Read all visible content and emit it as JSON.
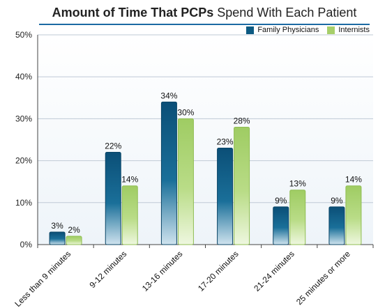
{
  "title": {
    "bold_part": "Amount of Time That PCPs",
    "rest_part": " Spend With Each Patient"
  },
  "colors": {
    "family_physicians": "#0d5a82",
    "internists": "#a7cf6a",
    "grid": "#bfcad6",
    "plot_bg_top": "#ffffff",
    "plot_bg_bottom": "#eef4f9"
  },
  "chart_data": {
    "type": "bar",
    "title": "Amount of Time That PCPs Spend With Each Patient",
    "categories": [
      "Less than 9 minutes",
      "9-12 minutes",
      "13-16 minutes",
      "17-20 minutes",
      "21-24 minutes",
      "25 minutes or more"
    ],
    "series": [
      {
        "name": "Family Physicians",
        "values": [
          3,
          22,
          34,
          23,
          9,
          9
        ],
        "labels": [
          "3%",
          "22%",
          "34%",
          "23%",
          "9%",
          "9%"
        ]
      },
      {
        "name": "Internists",
        "values": [
          2,
          14,
          30,
          28,
          13,
          14
        ],
        "labels": [
          "2%",
          "14%",
          "30%",
          "28%",
          "13%",
          "14%"
        ]
      }
    ],
    "yticks": [
      "0%",
      "10%",
      "20%",
      "30%",
      "40%",
      "50%"
    ],
    "ylim": [
      0,
      50
    ],
    "grid": true,
    "legend": "top-right"
  }
}
